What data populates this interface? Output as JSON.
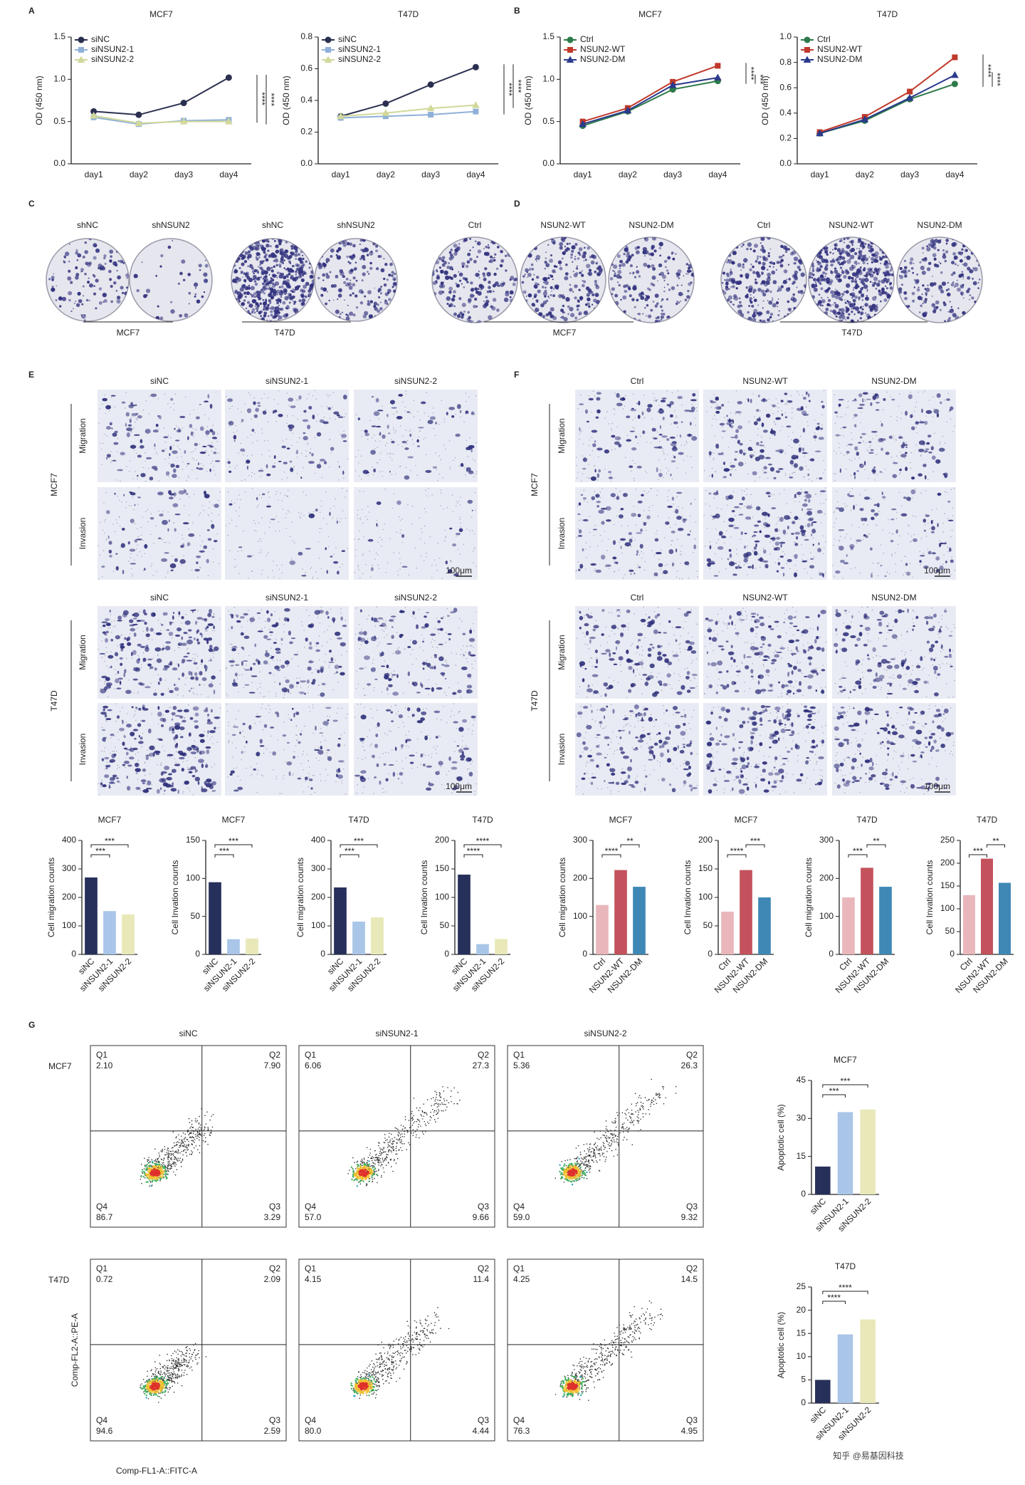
{
  "panel_labels": [
    "A",
    "B",
    "C",
    "D",
    "E",
    "F",
    "G"
  ],
  "chart_data": [
    {
      "type": "line",
      "title": "MCF7",
      "y_label": "OD (450 nm)",
      "categories": [
        "day1",
        "day2",
        "day3",
        "day4"
      ],
      "series": [
        {
          "name": "siNC",
          "color": "#2b2f4f",
          "values": [
            0.62,
            0.58,
            0.72,
            1.02
          ]
        },
        {
          "name": "siNSUN2-1",
          "color": "#8fb0d8",
          "values": [
            0.55,
            0.47,
            0.51,
            0.52
          ]
        },
        {
          "name": "siNSUN2-2",
          "color": "#d2d89a",
          "values": [
            0.57,
            0.48,
            0.5,
            0.5
          ]
        }
      ],
      "ylim": [
        0,
        1.5
      ],
      "yticks": [
        {
          "value": 0,
          "label": "0.0"
        },
        0.5,
        {
          "value": 1,
          "label": "1.0"
        },
        1.5
      ],
      "legend": "upper-left",
      "annotations": [
        "****",
        "****"
      ]
    },
    {
      "type": "line",
      "title": "T47D",
      "y_label": "OD (450 nm)",
      "categories": [
        "day1",
        "day2",
        "day3",
        "day4"
      ],
      "series": [
        {
          "name": "siNC",
          "color": "#2b2f4f",
          "values": [
            0.3,
            0.38,
            0.5,
            0.61
          ]
        },
        {
          "name": "siNSUN2-1",
          "color": "#8fb0d8",
          "values": [
            0.29,
            0.3,
            0.31,
            0.33
          ]
        },
        {
          "name": "siNSUN2-2",
          "color": "#d2d89a",
          "values": [
            0.3,
            0.32,
            0.35,
            0.37
          ]
        }
      ],
      "ylim": [
        0,
        0.8
      ],
      "yticks": [
        {
          "value": 0,
          "label": "0.0"
        },
        0.2,
        0.4,
        0.6,
        0.8
      ],
      "legend": "upper-left",
      "annotations": [
        "****",
        "****"
      ]
    },
    {
      "type": "line",
      "title": "MCF7",
      "y_label": "OD (450 nm)",
      "categories": [
        "day1",
        "day2",
        "day3",
        "day4"
      ],
      "series": [
        {
          "name": "Ctrl",
          "color": "#2d7a4a",
          "values": [
            0.45,
            0.62,
            0.88,
            0.98
          ]
        },
        {
          "name": "NSUN2-WT",
          "color": "#c0392b",
          "values": [
            0.5,
            0.66,
            0.97,
            1.16
          ]
        },
        {
          "name": "NSUN2-DM",
          "color": "#2a3a8c",
          "values": [
            0.47,
            0.63,
            0.93,
            1.02
          ]
        }
      ],
      "ylim": [
        0,
        1.5
      ],
      "yticks": [
        {
          "value": 0,
          "label": "0.0"
        },
        0.5,
        {
          "value": 1,
          "label": "1.0"
        },
        1.5
      ],
      "legend": "upper-left",
      "annotations": [
        "****",
        "***"
      ]
    },
    {
      "type": "line",
      "title": "T47D",
      "y_label": "OD (450 nm)",
      "categories": [
        "day1",
        "day2",
        "day3",
        "day4"
      ],
      "series": [
        {
          "name": "Ctrl",
          "color": "#2d7a4a",
          "values": [
            0.24,
            0.34,
            0.51,
            0.63
          ]
        },
        {
          "name": "NSUN2-WT",
          "color": "#c0392b",
          "values": [
            0.25,
            0.37,
            0.57,
            0.84
          ]
        },
        {
          "name": "NSUN2-DM",
          "color": "#2a3a8c",
          "values": [
            0.24,
            0.35,
            0.52,
            0.7
          ]
        }
      ],
      "ylim": [
        0,
        1
      ],
      "yticks": [
        {
          "value": 0,
          "label": "0.0"
        },
        0.2,
        0.4,
        0.6,
        0.8,
        {
          "value": 1,
          "label": "1.0"
        }
      ],
      "legend": "upper-left",
      "annotations": [
        "****",
        "****"
      ]
    },
    {
      "type": "bar",
      "title": "MCF7",
      "y_label": "Cell migration counts",
      "categories": [
        "siNC",
        "siNSUN2-1",
        "siNSUN2-2"
      ],
      "values": [
        270,
        152,
        140
      ],
      "colors": [
        "#27305a",
        "#a9c5e8",
        "#e8e8b8"
      ],
      "ylim": [
        0,
        400
      ],
      "yticks": [
        0,
        100,
        200,
        300,
        400
      ],
      "annotations": [
        {
          "text": "***",
          "between": [
            0,
            1
          ]
        },
        {
          "text": "***",
          "between": [
            0,
            2
          ]
        }
      ]
    },
    {
      "type": "bar",
      "title": "MCF7",
      "y_label": "Cell Invation counts",
      "categories": [
        "siNC",
        "siNSUN2-1",
        "siNSUN2-2"
      ],
      "values": [
        95,
        20,
        21
      ],
      "colors": [
        "#27305a",
        "#a9c5e8",
        "#e8e8b8"
      ],
      "ylim": [
        0,
        150
      ],
      "yticks": [
        0,
        50,
        100,
        150
      ],
      "annotations": [
        {
          "text": "***",
          "between": [
            0,
            1
          ]
        },
        {
          "text": "***",
          "between": [
            0,
            2
          ]
        }
      ]
    },
    {
      "type": "bar",
      "title": "T47D",
      "y_label": "Cell migration counts",
      "categories": [
        "siNC",
        "siNSUN2-1",
        "siNSUN2-2"
      ],
      "values": [
        235,
        115,
        130
      ],
      "colors": [
        "#27305a",
        "#a9c5e8",
        "#e8e8b8"
      ],
      "ylim": [
        0,
        400
      ],
      "yticks": [
        0,
        100,
        200,
        300,
        400
      ],
      "annotations": [
        {
          "text": "***",
          "between": [
            0,
            1
          ]
        },
        {
          "text": "***",
          "between": [
            0,
            2
          ]
        }
      ]
    },
    {
      "type": "bar",
      "title": "T47D",
      "y_label": "Cell Invation counts",
      "categories": [
        "siNC",
        "siNSUN2-1",
        "siNSUN2-2"
      ],
      "values": [
        140,
        18,
        27
      ],
      "colors": [
        "#27305a",
        "#a9c5e8",
        "#e8e8b8"
      ],
      "ylim": [
        0,
        200
      ],
      "yticks": [
        0,
        50,
        100,
        150,
        200
      ],
      "annotations": [
        {
          "text": "****",
          "between": [
            0,
            1
          ]
        },
        {
          "text": "****",
          "between": [
            0,
            2
          ]
        }
      ]
    },
    {
      "type": "bar",
      "title": "MCF7",
      "y_label": "Cell migration counts",
      "categories": [
        "Ctrl",
        "NSUN2-WT",
        "NSUN2-DM"
      ],
      "values": [
        130,
        222,
        178
      ],
      "colors": [
        "#e9b7bb",
        "#c4525c",
        "#3f88b6"
      ],
      "ylim": [
        0,
        300
      ],
      "yticks": [
        0,
        100,
        200,
        300
      ],
      "annotations": [
        {
          "text": "****",
          "between": [
            0,
            1
          ]
        },
        {
          "text": "**",
          "between": [
            1,
            2
          ]
        }
      ]
    },
    {
      "type": "bar",
      "title": "MCF7",
      "y_label": "Cell Invation counts",
      "categories": [
        "Ctrl",
        "NSUN2-WT",
        "NSUN2-DM"
      ],
      "values": [
        75,
        148,
        100
      ],
      "colors": [
        "#e9b7bb",
        "#c4525c",
        "#3f88b6"
      ],
      "ylim": [
        0,
        200
      ],
      "yticks": [
        0,
        50,
        100,
        150,
        200
      ],
      "annotations": [
        {
          "text": "****",
          "between": [
            0,
            1
          ]
        },
        {
          "text": "***",
          "between": [
            1,
            2
          ]
        }
      ]
    },
    {
      "type": "bar",
      "title": "T47D",
      "y_label": "Cell migration counts",
      "categories": [
        "Ctrl",
        "NSUN2-WT",
        "NSUN2-DM"
      ],
      "values": [
        150,
        228,
        178
      ],
      "colors": [
        "#e9b7bb",
        "#c4525c",
        "#3f88b6"
      ],
      "ylim": [
        0,
        300
      ],
      "yticks": [
        0,
        100,
        200,
        300
      ],
      "annotations": [
        {
          "text": "***",
          "between": [
            0,
            1
          ]
        },
        {
          "text": "**",
          "between": [
            1,
            2
          ]
        }
      ]
    },
    {
      "type": "bar",
      "title": "T47D",
      "y_label": "Cell Invation counts",
      "categories": [
        "Ctrl",
        "NSUN2-WT",
        "NSUN2-DM"
      ],
      "values": [
        130,
        210,
        157
      ],
      "colors": [
        "#e9b7bb",
        "#c4525c",
        "#3f88b6"
      ],
      "ylim": [
        0,
        250
      ],
      "yticks": [
        0,
        50,
        100,
        150,
        200,
        250
      ],
      "annotations": [
        {
          "text": "***",
          "between": [
            0,
            1
          ]
        },
        {
          "text": "**",
          "between": [
            1,
            2
          ]
        }
      ]
    },
    {
      "type": "bar",
      "title": "MCF7",
      "y_label": "Apoptotic cell (%)",
      "categories": [
        "siNC",
        "siNSUN2-1",
        "siNSUN2-2"
      ],
      "values": [
        11,
        32.5,
        33.5
      ],
      "colors": [
        "#27305a",
        "#a9c5e8",
        "#e8e8b8"
      ],
      "ylim": [
        0,
        45
      ],
      "yticks": [
        0,
        15,
        30,
        45
      ],
      "annotations": [
        {
          "text": "***",
          "between": [
            0,
            1
          ]
        },
        {
          "text": "***",
          "between": [
            0,
            2
          ]
        }
      ]
    },
    {
      "type": "bar",
      "title": "T47D",
      "y_label": "Apoptotic cell (%)",
      "categories": [
        "siNC",
        "siNSUN2-1",
        "siNSUN2-2"
      ],
      "values": [
        5,
        14.8,
        18
      ],
      "colors": [
        "#27305a",
        "#a9c5e8",
        "#e8e8b8"
      ],
      "ylim": [
        0,
        25
      ],
      "yticks": [
        0,
        5,
        10,
        15,
        20,
        25
      ],
      "annotations": [
        {
          "text": "****",
          "between": [
            0,
            1
          ]
        },
        {
          "text": "****",
          "between": [
            0,
            2
          ]
        }
      ]
    }
  ],
  "colony": {
    "C": {
      "groups": [
        "shNC",
        "shNSUN2",
        "shNC",
        "shNSUN2"
      ],
      "cell_lines": [
        "MCF7",
        "T47D"
      ]
    },
    "D": {
      "groups": [
        "Ctrl",
        "NSUN2-WT",
        "NSUN2-DM",
        "Ctrl",
        "NSUN2-WT",
        "NSUN2-DM"
      ],
      "cell_lines": [
        "MCF7",
        "T47D"
      ]
    }
  },
  "transwell": {
    "E": {
      "groups": [
        "siNC",
        "siNSUN2-1",
        "siNSUN2-2"
      ],
      "cell_lines": [
        "MCF7",
        "T47D"
      ],
      "assays": [
        "Migration",
        "Invasion"
      ],
      "scale_bar": "100μm"
    },
    "F": {
      "groups": [
        "Ctrl",
        "NSUN2-WT",
        "NSUN2-DM"
      ],
      "cell_lines": [
        "MCF7",
        "T47D"
      ],
      "assays": [
        "Migration",
        "Invasion"
      ],
      "scale_bar": "100μm"
    }
  },
  "flow": {
    "groups": [
      "siNC",
      "siNSUN2-1",
      "siNSUN2-2"
    ],
    "cell_lines": [
      "MCF7",
      "T47D"
    ],
    "y_label": "Comp-FL2-A::PE-A",
    "x_label": "Comp-FL1-A::FITC-A",
    "plots": [
      [
        [
          {
            "name": "Q1",
            "value": "2.10"
          },
          {
            "name": "Q2",
            "value": "7.90"
          },
          {
            "name": "Q3",
            "value": "3.29"
          },
          {
            "name": "Q4",
            "value": "86.7"
          }
        ],
        [
          {
            "name": "Q1",
            "value": "6.06"
          },
          {
            "name": "Q2",
            "value": "27.3"
          },
          {
            "name": "Q3",
            "value": "9.66"
          },
          {
            "name": "Q4",
            "value": "57.0"
          }
        ],
        [
          {
            "name": "Q1",
            "value": "5.36"
          },
          {
            "name": "Q2",
            "value": "26.3"
          },
          {
            "name": "Q3",
            "value": "9.32"
          },
          {
            "name": "Q4",
            "value": "59.0"
          }
        ]
      ],
      [
        [
          {
            "name": "Q1",
            "value": "0.72"
          },
          {
            "name": "Q2",
            "value": "2.09"
          },
          {
            "name": "Q3",
            "value": "2.59"
          },
          {
            "name": "Q4",
            "value": "94.6"
          }
        ],
        [
          {
            "name": "Q1",
            "value": "4.15"
          },
          {
            "name": "Q2",
            "value": "11.4"
          },
          {
            "name": "Q3",
            "value": "4.44"
          },
          {
            "name": "Q4",
            "value": "80.0"
          }
        ],
        [
          {
            "name": "Q1",
            "value": "4.25"
          },
          {
            "name": "Q2",
            "value": "14.5"
          },
          {
            "name": "Q3",
            "value": "4.95"
          },
          {
            "name": "Q4",
            "value": "76.3"
          }
        ]
      ]
    ]
  },
  "watermark": "知乎 @易基因科技"
}
